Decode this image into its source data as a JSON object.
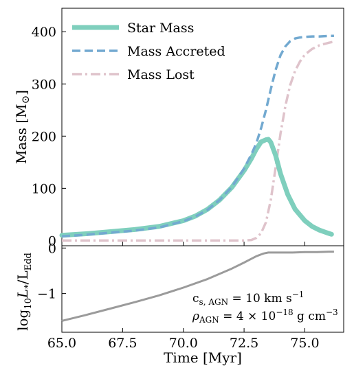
{
  "chart_data": [
    {
      "type": "line",
      "panel": "top",
      "ylabel": "Mass [M⊙]",
      "xlim": [
        65.0,
        76.6
      ],
      "ylim": [
        -10,
        445
      ],
      "yticks": [
        0,
        100,
        200,
        300,
        400
      ],
      "ytick_labels": [
        "0",
        "100",
        "200",
        "300",
        "400"
      ],
      "legend_position": "upper-left",
      "series": [
        {
          "name": "Star Mass",
          "color": "#7fcfbd",
          "style": "solid",
          "x": [
            65.0,
            66.0,
            67.0,
            68.0,
            69.0,
            70.0,
            70.5,
            71.0,
            71.5,
            72.0,
            72.5,
            72.8,
            73.0,
            73.2,
            73.4,
            73.5,
            73.6,
            73.8,
            74.0,
            74.3,
            74.6,
            75.0,
            75.3,
            75.6,
            75.9,
            76.1
          ],
          "y": [
            10,
            13,
            17,
            21,
            27,
            38,
            47,
            60,
            78,
            102,
            134,
            157,
            175,
            189,
            193,
            194,
            188,
            163,
            128,
            88,
            60,
            38,
            27,
            20,
            15,
            12
          ]
        },
        {
          "name": "Mass Accreted",
          "color": "#72a9d0",
          "style": "dashed",
          "x": [
            65.0,
            66.0,
            67.0,
            68.0,
            69.0,
            70.0,
            70.5,
            71.0,
            71.5,
            72.0,
            72.5,
            72.8,
            73.0,
            73.2,
            73.4,
            73.6,
            73.8,
            74.0,
            74.2,
            74.4,
            74.6,
            74.8,
            75.0,
            75.3,
            75.6,
            76.0,
            76.2
          ],
          "y": [
            8,
            11,
            15,
            19,
            25,
            37,
            46,
            59,
            78,
            103,
            138,
            165,
            186,
            215,
            250,
            290,
            327,
            355,
            372,
            382,
            387,
            389,
            390,
            391,
            391,
            392,
            392
          ]
        },
        {
          "name": "Mass Lost",
          "color": "#dfc3cb",
          "style": "dashdot",
          "x": [
            65.0,
            66.0,
            67.0,
            68.0,
            69.0,
            70.0,
            71.0,
            72.0,
            72.5,
            72.8,
            73.0,
            73.2,
            73.4,
            73.6,
            73.8,
            74.0,
            74.2,
            74.4,
            74.6,
            74.8,
            75.0,
            75.3,
            75.6,
            76.0,
            76.2
          ],
          "y": [
            0,
            0,
            0,
            0,
            0,
            0,
            0,
            0,
            0,
            1,
            5,
            14,
            35,
            78,
            140,
            205,
            258,
            298,
            325,
            343,
            356,
            367,
            374,
            379,
            381
          ]
        }
      ]
    },
    {
      "type": "line",
      "panel": "bottom",
      "xlabel": "Time [Myr]",
      "ylabel": "log₁₀ L⁎/L_Edd",
      "xlim": [
        65.0,
        76.6
      ],
      "ylim": [
        -1.85,
        0.05
      ],
      "xticks": [
        65.0,
        67.5,
        70.0,
        72.5,
        75.0
      ],
      "xtick_labels": [
        "65.0",
        "67.5",
        "70.0",
        "72.5",
        "75.0"
      ],
      "yticks": [
        0,
        -1
      ],
      "ytick_labels": [
        "0",
        "−1"
      ],
      "series": [
        {
          "color": "#9b9b9b",
          "style": "solid",
          "x": [
            65.0,
            66.0,
            67.0,
            68.0,
            69.0,
            70.0,
            71.0,
            72.0,
            72.5,
            73.0,
            73.3,
            73.5,
            74.0,
            74.5,
            75.0,
            75.5,
            76.0,
            76.2
          ],
          "y": [
            -1.6,
            -1.47,
            -1.33,
            -1.19,
            -1.04,
            -0.87,
            -0.68,
            -0.45,
            -0.32,
            -0.18,
            -0.12,
            -0.1,
            -0.1,
            -0.1,
            -0.09,
            -0.09,
            -0.08,
            -0.08
          ]
        }
      ],
      "annotations": [
        {
          "name": "sound-speed",
          "text": "cₛ,AGN = 10 km s⁻¹"
        },
        {
          "name": "agn-density",
          "text": "ρAGN = 4×10⁻¹⁸ g cm⁻³"
        }
      ]
    }
  ],
  "labels": {
    "top_ylabel_main": "Mass [M",
    "top_ylabel_sym": "⊙",
    "top_ylabel_end": "]",
    "bottom_ylabel_log": "log",
    "bottom_ylabel_sub10": "10",
    "bottom_ylabel_L": "L",
    "bottom_ylabel_star": "*",
    "bottom_ylabel_slash": "/L",
    "bottom_ylabel_edd": "Edd",
    "xlabel": "Time [Myr]",
    "annot1_c": "c",
    "annot1_sub": "s, AGN",
    "annot1_rest": " = 10 km s",
    "annot1_sup": "−1",
    "annot2_rho": "ρ",
    "annot2_sub": "AGN",
    "annot2_rest": " = 4 × 10",
    "annot2_sup": "−18",
    "annot2_end": " g cm",
    "annot2_sup2": "−3"
  }
}
